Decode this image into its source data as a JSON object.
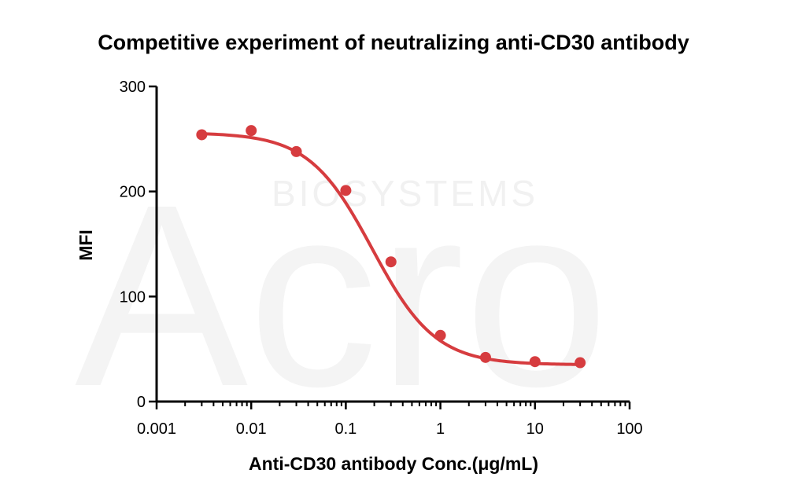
{
  "watermark": {
    "brand": "Acro",
    "sub": "BIOSYSTEMS"
  },
  "colors": {
    "series": "#d63c3f",
    "axis": "#000000"
  },
  "chart_data": {
    "type": "scatter",
    "title": "Competitive experiment of neutralizing anti-CD30 antibody",
    "xlabel": "Anti-CD30 antibody Conc.(μg/mL)",
    "ylabel": "MFI",
    "xscale": "log",
    "xlim": [
      0.001,
      100
    ],
    "ylim": [
      0,
      300
    ],
    "xticks": [
      "0.001",
      "0.01",
      "0.1",
      "1",
      "10",
      "100"
    ],
    "yticks": [
      "0",
      "100",
      "200",
      "300"
    ],
    "grid": false,
    "legend": "none",
    "series": [
      {
        "x": [
          0.003,
          0.01,
          0.03,
          0.1,
          0.3,
          1,
          3,
          10,
          30
        ],
        "y": [
          254,
          258,
          238,
          201,
          133,
          63,
          42,
          38,
          37
        ],
        "fit": {
          "model": "4PL",
          "top": 256,
          "bottom": 35,
          "ic50": 0.19,
          "hill": 1.3
        }
      }
    ]
  }
}
